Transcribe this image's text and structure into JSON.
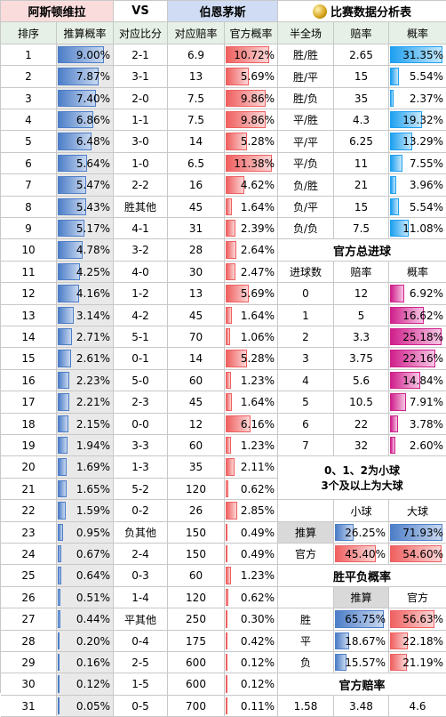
{
  "header": {
    "home_team": "阿斯顿维拉",
    "vs": "VS",
    "away_team": "伯恩茅斯",
    "analysis_title": "比赛数据分析表"
  },
  "columns": [
    "排序",
    "推算概率",
    "对应比分",
    "对应赔率",
    "官方概率",
    "半全场",
    "赔率",
    "概率"
  ],
  "scores": [
    {
      "rank": "1",
      "calc": "9.00%",
      "calc_v": 9.0,
      "score": "2-1",
      "odds": "6.9",
      "official": "10.72%",
      "off_v": 10.72
    },
    {
      "rank": "2",
      "calc": "7.87%",
      "calc_v": 7.87,
      "score": "3-1",
      "odds": "13",
      "official": "5.69%",
      "off_v": 5.69
    },
    {
      "rank": "3",
      "calc": "7.40%",
      "calc_v": 7.4,
      "score": "2-0",
      "odds": "7.5",
      "official": "9.86%",
      "off_v": 9.86
    },
    {
      "rank": "4",
      "calc": "6.86%",
      "calc_v": 6.86,
      "score": "1-1",
      "odds": "7.5",
      "official": "9.86%",
      "off_v": 9.86
    },
    {
      "rank": "5",
      "calc": "6.48%",
      "calc_v": 6.48,
      "score": "3-0",
      "odds": "14",
      "official": "5.28%",
      "off_v": 5.28
    },
    {
      "rank": "6",
      "calc": "5.64%",
      "calc_v": 5.64,
      "score": "1-0",
      "odds": "6.5",
      "official": "11.38%",
      "off_v": 11.38
    },
    {
      "rank": "7",
      "calc": "5.47%",
      "calc_v": 5.47,
      "score": "2-2",
      "odds": "16",
      "official": "4.62%",
      "off_v": 4.62
    },
    {
      "rank": "8",
      "calc": "5.43%",
      "calc_v": 5.43,
      "score": "胜其他",
      "odds": "45",
      "official": "1.64%",
      "off_v": 1.64
    },
    {
      "rank": "9",
      "calc": "5.17%",
      "calc_v": 5.17,
      "score": "4-1",
      "odds": "31",
      "official": "2.39%",
      "off_v": 2.39
    },
    {
      "rank": "10",
      "calc": "4.78%",
      "calc_v": 4.78,
      "score": "3-2",
      "odds": "28",
      "official": "2.64%",
      "off_v": 2.64
    },
    {
      "rank": "11",
      "calc": "4.25%",
      "calc_v": 4.25,
      "score": "4-0",
      "odds": "30",
      "official": "2.47%",
      "off_v": 2.47
    },
    {
      "rank": "12",
      "calc": "4.16%",
      "calc_v": 4.16,
      "score": "1-2",
      "odds": "13",
      "official": "5.69%",
      "off_v": 5.69
    },
    {
      "rank": "13",
      "calc": "3.14%",
      "calc_v": 3.14,
      "score": "4-2",
      "odds": "45",
      "official": "1.64%",
      "off_v": 1.64
    },
    {
      "rank": "14",
      "calc": "2.71%",
      "calc_v": 2.71,
      "score": "5-1",
      "odds": "70",
      "official": "1.06%",
      "off_v": 1.06
    },
    {
      "rank": "15",
      "calc": "2.61%",
      "calc_v": 2.61,
      "score": "0-1",
      "odds": "14",
      "official": "5.28%",
      "off_v": 5.28
    },
    {
      "rank": "16",
      "calc": "2.23%",
      "calc_v": 2.23,
      "score": "5-0",
      "odds": "60",
      "official": "1.23%",
      "off_v": 1.23
    },
    {
      "rank": "17",
      "calc": "2.21%",
      "calc_v": 2.21,
      "score": "2-3",
      "odds": "45",
      "official": "1.64%",
      "off_v": 1.64
    },
    {
      "rank": "18",
      "calc": "2.15%",
      "calc_v": 2.15,
      "score": "0-0",
      "odds": "12",
      "official": "6.16%",
      "off_v": 6.16
    },
    {
      "rank": "19",
      "calc": "1.94%",
      "calc_v": 1.94,
      "score": "3-3",
      "odds": "60",
      "official": "1.23%",
      "off_v": 1.23
    },
    {
      "rank": "20",
      "calc": "1.69%",
      "calc_v": 1.69,
      "score": "1-3",
      "odds": "35",
      "official": "2.11%",
      "off_v": 2.11
    },
    {
      "rank": "21",
      "calc": "1.65%",
      "calc_v": 1.65,
      "score": "5-2",
      "odds": "120",
      "official": "0.62%",
      "off_v": 0.62
    },
    {
      "rank": "22",
      "calc": "1.59%",
      "calc_v": 1.59,
      "score": "0-2",
      "odds": "26",
      "official": "2.85%",
      "off_v": 2.85
    },
    {
      "rank": "23",
      "calc": "0.95%",
      "calc_v": 0.95,
      "score": "负其他",
      "odds": "150",
      "official": "0.49%",
      "off_v": 0.49
    },
    {
      "rank": "24",
      "calc": "0.67%",
      "calc_v": 0.67,
      "score": "2-4",
      "odds": "150",
      "official": "0.49%",
      "off_v": 0.49
    },
    {
      "rank": "25",
      "calc": "0.64%",
      "calc_v": 0.64,
      "score": "0-3",
      "odds": "60",
      "official": "1.23%",
      "off_v": 1.23
    },
    {
      "rank": "26",
      "calc": "0.51%",
      "calc_v": 0.51,
      "score": "1-4",
      "odds": "120",
      "official": "0.62%",
      "off_v": 0.62
    },
    {
      "rank": "27",
      "calc": "0.44%",
      "calc_v": 0.44,
      "score": "平其他",
      "odds": "250",
      "official": "0.30%",
      "off_v": 0.3
    },
    {
      "rank": "28",
      "calc": "0.20%",
      "calc_v": 0.2,
      "score": "0-4",
      "odds": "175",
      "official": "0.42%",
      "off_v": 0.42
    },
    {
      "rank": "29",
      "calc": "0.16%",
      "calc_v": 0.16,
      "score": "2-5",
      "odds": "600",
      "official": "0.12%",
      "off_v": 0.12
    },
    {
      "rank": "30",
      "calc": "0.12%",
      "calc_v": 0.12,
      "score": "1-5",
      "odds": "600",
      "official": "0.12%",
      "off_v": 0.12
    },
    {
      "rank": "31",
      "calc": "0.05%",
      "calc_v": 0.05,
      "score": "0-5",
      "odds": "700",
      "official": "0.11%",
      "off_v": 0.11
    }
  ],
  "halftime": [
    {
      "label": "胜/胜",
      "odds": "2.65",
      "prob": "31.35%",
      "v": 31.35
    },
    {
      "label": "胜/平",
      "odds": "15",
      "prob": "5.54%",
      "v": 5.54
    },
    {
      "label": "胜/负",
      "odds": "35",
      "prob": "2.37%",
      "v": 2.37
    },
    {
      "label": "平/胜",
      "odds": "4.3",
      "prob": "19.32%",
      "v": 19.32
    },
    {
      "label": "平/平",
      "odds": "6.25",
      "prob": "13.29%",
      "v": 13.29
    },
    {
      "label": "平/负",
      "odds": "11",
      "prob": "7.55%",
      "v": 7.55
    },
    {
      "label": "负/胜",
      "odds": "21",
      "prob": "3.96%",
      "v": 3.96
    },
    {
      "label": "负/平",
      "odds": "15",
      "prob": "5.54%",
      "v": 5.54
    },
    {
      "label": "负/负",
      "odds": "7.5",
      "prob": "11.08%",
      "v": 11.08
    }
  ],
  "goals": {
    "title": "官方总进球",
    "headers": [
      "进球数",
      "赔率",
      "概率"
    ],
    "rows": [
      {
        "n": "0",
        "odds": "12",
        "prob": "6.92%",
        "v": 6.92
      },
      {
        "n": "1",
        "odds": "5",
        "prob": "16.62%",
        "v": 16.62
      },
      {
        "n": "2",
        "odds": "3.3",
        "prob": "25.18%",
        "v": 25.18
      },
      {
        "n": "3",
        "odds": "3.75",
        "prob": "22.16%",
        "v": 22.16
      },
      {
        "n": "4",
        "odds": "5.6",
        "prob": "14.84%",
        "v": 14.84
      },
      {
        "n": "5",
        "odds": "10.5",
        "prob": "7.91%",
        "v": 7.91
      },
      {
        "n": "6",
        "odds": "22",
        "prob": "3.78%",
        "v": 3.78
      },
      {
        "n": "7",
        "odds": "32",
        "prob": "2.60%",
        "v": 2.6
      }
    ]
  },
  "note": {
    "line1": "0、1、2为小球",
    "line2": "3个及以上为大球"
  },
  "bigsmall": {
    "h_small": "小球",
    "h_big": "大球",
    "calc_label": "推算",
    "calc_small": "26.25%",
    "calc_small_v": 26.25,
    "calc_big": "71.93%",
    "calc_big_v": 71.93,
    "off_label": "官方",
    "off_small": "45.40%",
    "off_small_v": 45.4,
    "off_big": "54.60%",
    "off_big_v": 54.6
  },
  "wdl": {
    "title": "胜平负概率",
    "h_calc": "推算",
    "h_off": "官方",
    "rows": [
      {
        "label": "胜",
        "calc": "65.75%",
        "calc_v": 65.75,
        "off": "56.63%",
        "off_v": 56.63
      },
      {
        "label": "平",
        "calc": "18.67%",
        "calc_v": 18.67,
        "off": "22.18%",
        "off_v": 22.18
      },
      {
        "label": "负",
        "calc": "15.57%",
        "calc_v": 15.57,
        "off": "21.19%",
        "off_v": 21.19
      }
    ]
  },
  "official_odds": {
    "title": "官方赔率",
    "home": "1.58",
    "draw": "3.48",
    "away": "4.6"
  }
}
